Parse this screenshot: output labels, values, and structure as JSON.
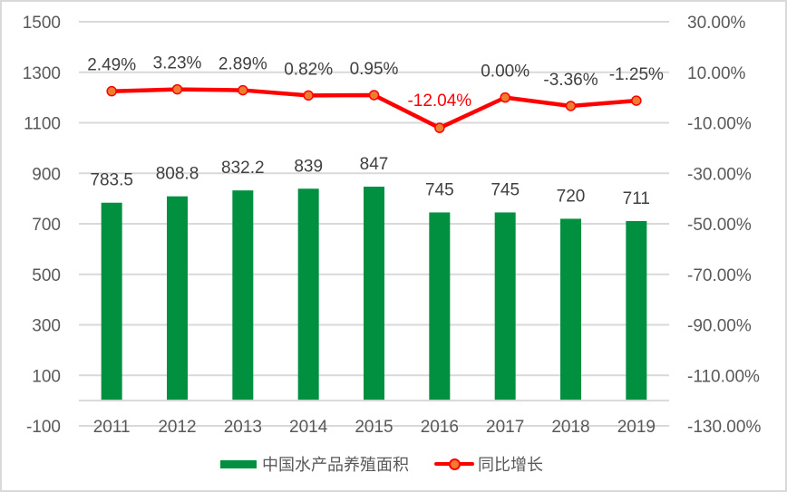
{
  "chart_data": {
    "type": "bar",
    "combo": "bar + line (secondary axis)",
    "title": "",
    "categories": [
      "2011",
      "2012",
      "2013",
      "2014",
      "2015",
      "2016",
      "2017",
      "2018",
      "2019"
    ],
    "series": [
      {
        "name": "中国水产品养殖面积",
        "type": "bar",
        "axis": "left",
        "color": "#00903f",
        "values": [
          783.5,
          808.8,
          832.2,
          839,
          847,
          745,
          745,
          720,
          711
        ],
        "labels": [
          "783.5",
          "808.8",
          "832.2",
          "839",
          "847",
          "745",
          "745",
          "720",
          "711"
        ]
      },
      {
        "name": "同比增长",
        "type": "line",
        "axis": "right",
        "color": "#ff0000",
        "marker_color": "#ed7d31",
        "values": [
          2.49,
          3.23,
          2.89,
          0.82,
          0.95,
          -12.04,
          0.0,
          -3.36,
          -1.25
        ],
        "labels": [
          "2.49%",
          "3.23%",
          "2.89%",
          "0.82%",
          "0.95%",
          "-12.04%",
          "0.00%",
          "-3.36%",
          "-1.25%"
        ],
        "highlight_label_index": 5,
        "highlight_label_color": "#ff0000"
      }
    ],
    "left_axis": {
      "ylim": [
        -100,
        1500
      ],
      "ticks": [
        "1500",
        "1300",
        "1100",
        "900",
        "700",
        "500",
        "300",
        "100",
        "-100"
      ]
    },
    "right_axis": {
      "ylim": [
        -130,
        30
      ],
      "ticks": [
        "30.00%",
        "10.00%",
        "-10.00%",
        "-30.00%",
        "-50.00%",
        "-70.00%",
        "-90.00%",
        "-110.00%",
        "-130.00%"
      ]
    },
    "xlabel": "",
    "ylabel": "",
    "grid": true,
    "legend_position": "bottom"
  },
  "legend": {
    "bar_label": "中国水产品养殖面积",
    "line_label": "同比增长"
  }
}
